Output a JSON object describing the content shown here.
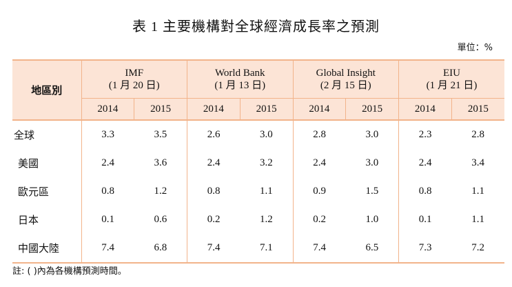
{
  "title": "表 1  主要機構對全球經濟成長率之預測",
  "unit": "單位：%",
  "table": {
    "row_header": "地區別",
    "sources": [
      {
        "name": "IMF",
        "date": "(1 月 20 日)"
      },
      {
        "name": "World Bank",
        "date": "(1 月 13 日)"
      },
      {
        "name": "Global Insight",
        "date": "(2 月 15 日)"
      },
      {
        "name": "EIU",
        "date": "(1 月 21 日)"
      }
    ],
    "years": [
      "2014",
      "2015",
      "2014",
      "2015",
      "2014",
      "2015",
      "2014",
      "2015"
    ],
    "rows": [
      {
        "label": "全球",
        "values": [
          "3.3",
          "3.5",
          "2.6",
          "3.0",
          "2.8",
          "3.0",
          "2.3",
          "2.8"
        ]
      },
      {
        "label": "美國",
        "values": [
          "2.4",
          "3.6",
          "2.4",
          "3.2",
          "2.4",
          "3.0",
          "2.4",
          "3.4"
        ]
      },
      {
        "label": "歐元區",
        "values": [
          "0.8",
          "1.2",
          "0.8",
          "1.1",
          "0.9",
          "1.5",
          "0.8",
          "1.1"
        ]
      },
      {
        "label": "日本",
        "values": [
          "0.1",
          "0.6",
          "0.2",
          "1.2",
          "0.2",
          "1.0",
          "0.1",
          "1.1"
        ]
      },
      {
        "label": "中國大陸",
        "values": [
          "7.4",
          "6.8",
          "7.4",
          "7.1",
          "7.4",
          "6.5",
          "7.3",
          "7.2"
        ]
      }
    ]
  },
  "note": "註: ( )內為各機構預測時間。",
  "colors": {
    "header_bg": "#fce4d6",
    "border": "#f2b38a"
  }
}
